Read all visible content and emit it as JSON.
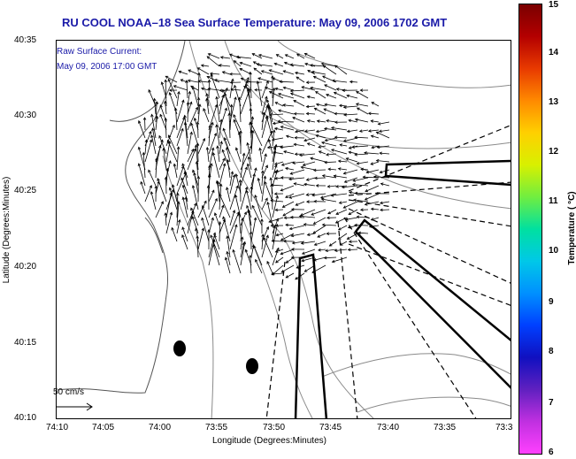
{
  "title": "RU COOL  NOAA–18  Sea Surface Temperature:  May 09, 2006 1702 GMT",
  "overlay": {
    "line1": "Raw Surface Current:",
    "line2": "May 09, 2006 17:00 GMT"
  },
  "axes": {
    "ylabel": "Latitude (Degrees:Minutes)",
    "xlabel": "Longitude (Degrees:Minutes)",
    "yticks": [
      "40:35",
      "40:30",
      "40:25",
      "40:20",
      "40:15",
      "40:10"
    ],
    "xticks": [
      "74:10",
      "74:05",
      "74:00",
      "73:55",
      "73:50",
      "73:45",
      "73:40",
      "73:35",
      "73:3"
    ]
  },
  "scale_arrow": "50 cm/s",
  "colorbar": {
    "label": "Temperature ( °C)",
    "ticks": [
      "15",
      "14",
      "13",
      "12",
      "11",
      "10",
      "9",
      "8",
      "7",
      "6"
    ],
    "colors": [
      "#7a0000",
      "#b40000",
      "#e83a00",
      "#ff8a00",
      "#ffd000",
      "#d8f000",
      "#70ee40",
      "#00e0a0",
      "#00c8e8",
      "#0090ff",
      "#0040ff",
      "#1010c0",
      "#6020c0",
      "#c030e0",
      "#ff40ff"
    ]
  },
  "features": {
    "land_color": "#ffffff",
    "contour_color": "#8a8a8a",
    "arrow_color": "#000000",
    "marker_color": "#000000"
  }
}
